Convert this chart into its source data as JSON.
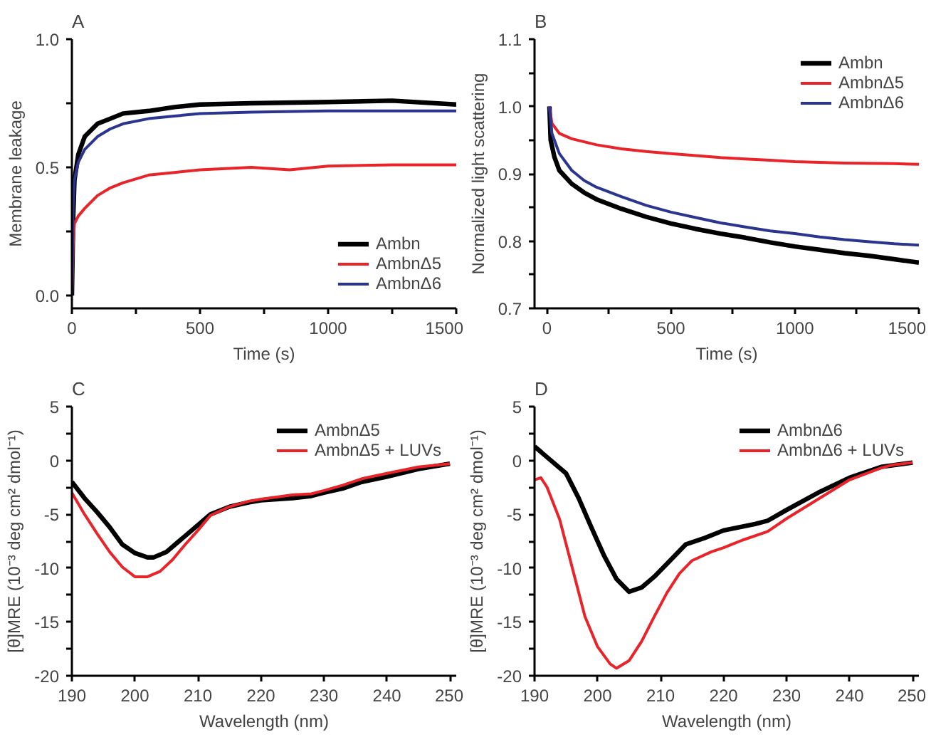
{
  "chart_data": [
    {
      "type": "line",
      "title": "A",
      "xlabel": "Time (s)",
      "ylabel": "Membrane leakage",
      "xlim": [
        0,
        1500
      ],
      "ylim": [
        -0.05,
        1.0
      ],
      "xticks": [
        0,
        {
          "value": 250,
          "label": null
        },
        500,
        {
          "value": 750,
          "label": null
        },
        1000,
        {
          "value": 1250,
          "label": null
        },
        1500
      ],
      "yticks": [
        {
          "value": 0.0,
          "label": "0.0"
        },
        {
          "value": 0.25,
          "label": null
        },
        {
          "value": 0.5,
          "label": "0.5"
        },
        {
          "value": 0.75,
          "label": null
        },
        {
          "value": 1.0,
          "label": "1.0"
        }
      ],
      "grid": false,
      "legend": "bottom right",
      "series": [
        {
          "name": "Ambn",
          "color": "#000000",
          "x": [
            0,
            5,
            10,
            25,
            50,
            100,
            150,
            200,
            300,
            400,
            500,
            700,
            1000,
            1250,
            1500
          ],
          "values": [
            0.0,
            0.3,
            0.45,
            0.55,
            0.62,
            0.67,
            0.69,
            0.71,
            0.72,
            0.735,
            0.745,
            0.75,
            0.755,
            0.76,
            0.745
          ]
        },
        {
          "name": "AmbnΔ5",
          "color": "#e8242a",
          "x": [
            0,
            5,
            10,
            25,
            50,
            100,
            150,
            200,
            300,
            400,
            500,
            700,
            850,
            1000,
            1250,
            1500
          ],
          "values": [
            0.0,
            0.2,
            0.28,
            0.31,
            0.34,
            0.39,
            0.42,
            0.44,
            0.47,
            0.48,
            0.49,
            0.5,
            0.49,
            0.505,
            0.51,
            0.51
          ]
        },
        {
          "name": "AmbnΔ6",
          "color": "#2b3590",
          "x": [
            0,
            5,
            10,
            25,
            50,
            100,
            150,
            200,
            300,
            400,
            500,
            700,
            1000,
            1250,
            1500
          ],
          "values": [
            0.0,
            0.35,
            0.45,
            0.52,
            0.57,
            0.62,
            0.65,
            0.67,
            0.69,
            0.7,
            0.71,
            0.715,
            0.72,
            0.72,
            0.72
          ]
        }
      ]
    },
    {
      "type": "line",
      "title": "B",
      "xlabel": "Time (s)",
      "ylabel": "Normalized light scattering",
      "xlim": [
        -50,
        1500
      ],
      "ylim": [
        0.7,
        1.1
      ],
      "xticks": [
        0,
        {
          "value": 250,
          "label": null
        },
        500,
        {
          "value": 750,
          "label": null
        },
        1000,
        {
          "value": 1250,
          "label": null
        },
        1500
      ],
      "yticks": [
        {
          "value": 0.7,
          "label": "0.7"
        },
        {
          "value": 0.75,
          "label": null
        },
        {
          "value": 0.8,
          "label": "0.8"
        },
        {
          "value": 0.85,
          "label": null
        },
        {
          "value": 0.9,
          "label": "0.9"
        },
        {
          "value": 0.95,
          "label": null
        },
        {
          "value": 1.0,
          "label": "1.0"
        },
        {
          "value": 1.05,
          "label": null
        },
        {
          "value": 1.1,
          "label": "1.1"
        }
      ],
      "grid": false,
      "legend": "top right",
      "series": [
        {
          "name": "Ambn",
          "color": "#000000",
          "x": [
            10,
            15,
            30,
            50,
            100,
            150,
            200,
            300,
            400,
            500,
            600,
            700,
            800,
            900,
            1000,
            1100,
            1200,
            1300,
            1400,
            1500
          ],
          "values": [
            1.0,
            0.95,
            0.925,
            0.905,
            0.885,
            0.872,
            0.862,
            0.848,
            0.836,
            0.826,
            0.818,
            0.811,
            0.805,
            0.798,
            0.792,
            0.787,
            0.782,
            0.778,
            0.773,
            0.768
          ]
        },
        {
          "name": "AmbnΔ5",
          "color": "#e8242a",
          "x": [
            10,
            20,
            50,
            100,
            200,
            300,
            400,
            500,
            600,
            700,
            800,
            900,
            1000,
            1200,
            1400,
            1500
          ],
          "values": [
            1.0,
            0.975,
            0.96,
            0.952,
            0.943,
            0.937,
            0.933,
            0.93,
            0.927,
            0.924,
            0.922,
            0.92,
            0.918,
            0.916,
            0.915,
            0.914
          ]
        },
        {
          "name": "AmbnΔ6",
          "color": "#2b3590",
          "x": [
            10,
            20,
            50,
            100,
            150,
            200,
            300,
            400,
            500,
            600,
            700,
            800,
            900,
            1000,
            1100,
            1200,
            1300,
            1400,
            1500
          ],
          "values": [
            1.0,
            0.96,
            0.93,
            0.905,
            0.89,
            0.88,
            0.866,
            0.853,
            0.843,
            0.835,
            0.827,
            0.821,
            0.815,
            0.811,
            0.806,
            0.802,
            0.799,
            0.796,
            0.794
          ]
        }
      ]
    },
    {
      "type": "line",
      "title": "C",
      "xlabel": "Wavelength (nm)",
      "ylabel": "[θ]MRE (10⁻³ deg cm² dmol⁻¹)",
      "xlim": [
        190,
        251
      ],
      "ylim": [
        -20,
        5
      ],
      "xticks": [
        190,
        200,
        210,
        220,
        230,
        240,
        250
      ],
      "yticks": [
        -20,
        {
          "value": -17.5,
          "label": null
        },
        -15,
        {
          "value": -12.5,
          "label": null
        },
        -10,
        {
          "value": -7.5,
          "label": null
        },
        -5,
        {
          "value": -2.5,
          "label": null
        },
        0,
        {
          "value": 2.5,
          "label": null
        },
        5
      ],
      "grid": false,
      "legend": "top right",
      "series": [
        {
          "name": "AmbnΔ5",
          "color": "#000000",
          "x": [
            190,
            192,
            194,
            196,
            198,
            200,
            202,
            203,
            205,
            207,
            210,
            212,
            215,
            218,
            220,
            225,
            228,
            230,
            233,
            236,
            240,
            245,
            250
          ],
          "values": [
            -2,
            -3.5,
            -4.8,
            -6.2,
            -7.8,
            -8.6,
            -9.0,
            -9.0,
            -8.5,
            -7.5,
            -6.0,
            -5.0,
            -4.3,
            -3.9,
            -3.7,
            -3.5,
            -3.3,
            -3.0,
            -2.6,
            -2.0,
            -1.5,
            -0.8,
            -0.3
          ]
        },
        {
          "name": "AmbnΔ5 + LUVs",
          "color": "#e8242a",
          "x": [
            190,
            192,
            194,
            196,
            198,
            200,
            202,
            204,
            206,
            208,
            210,
            212,
            215,
            218,
            220,
            225,
            228,
            230,
            233,
            236,
            240,
            245,
            250
          ],
          "values": [
            -3,
            -5,
            -6.8,
            -8.5,
            -9.9,
            -10.8,
            -10.8,
            -10.3,
            -9.2,
            -7.8,
            -6.5,
            -5.1,
            -4.3,
            -3.8,
            -3.6,
            -3.2,
            -3.1,
            -2.8,
            -2.3,
            -1.7,
            -1.2,
            -0.6,
            -0.3
          ]
        }
      ]
    },
    {
      "type": "line",
      "title": "D",
      "xlabel": "Wavelength (nm)",
      "ylabel": "[θ]MRE (10⁻³ deg cm² dmol⁻¹)",
      "xlim": [
        190,
        251
      ],
      "ylim": [
        -20,
        5
      ],
      "xticks": [
        190,
        200,
        210,
        220,
        230,
        240,
        250
      ],
      "yticks": [
        -20,
        {
          "value": -17.5,
          "label": null
        },
        -15,
        {
          "value": -12.5,
          "label": null
        },
        -10,
        {
          "value": -7.5,
          "label": null
        },
        -5,
        {
          "value": -2.5,
          "label": null
        },
        0,
        {
          "value": 2.5,
          "label": null
        },
        5
      ],
      "grid": false,
      "legend": "top right",
      "series": [
        {
          "name": "AmbnΔ6",
          "color": "#000000",
          "x": [
            190,
            192,
            195,
            197,
            199,
            201,
            203,
            205,
            207,
            209,
            212,
            214,
            217,
            220,
            225,
            227,
            230,
            235,
            240,
            245,
            250
          ],
          "values": [
            1.3,
            0.3,
            -1.2,
            -3.5,
            -6.2,
            -8.8,
            -11.0,
            -12.2,
            -11.8,
            -10.8,
            -9.0,
            -7.8,
            -7.2,
            -6.5,
            -5.9,
            -5.6,
            -4.6,
            -3.0,
            -1.6,
            -0.6,
            -0.2
          ]
        },
        {
          "name": "AmbnΔ6 + LUVs",
          "color": "#e8242a",
          "x": [
            190,
            191,
            192,
            194,
            196,
            198,
            200,
            202,
            203,
            205,
            207,
            209,
            211,
            213,
            215,
            218,
            220,
            223,
            227,
            230,
            235,
            240,
            245,
            247,
            250
          ],
          "values": [
            -1.8,
            -1.6,
            -2.5,
            -5.5,
            -10,
            -14.5,
            -17.3,
            -18.9,
            -19.3,
            -18.6,
            -16.8,
            -14.5,
            -12.3,
            -10.5,
            -9.3,
            -8.5,
            -8.1,
            -7.4,
            -6.6,
            -5.4,
            -3.6,
            -1.8,
            -0.7,
            -0.4,
            -0.2
          ]
        }
      ]
    }
  ]
}
